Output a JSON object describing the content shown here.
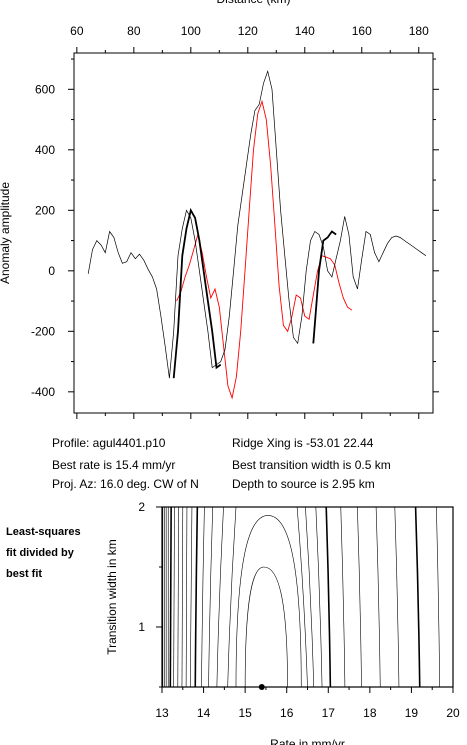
{
  "info": {
    "profile": "Profile: agul4401.p10",
    "best_rate": "Best rate is 15.4 mm/yr",
    "proj_az": "Proj. Az: 16.0 deg. CW of N",
    "ridge_xing": "Ridge Xing is -53.01 22.44",
    "best_width": "Best transition width is 0.5 km",
    "depth": "Depth to source is   2.95 km"
  },
  "side_note": [
    "Least-squares",
    "fit divided by",
    "best fit"
  ],
  "colors": {
    "observed": "#000000",
    "model": "#ff0000",
    "axes": "#000000"
  },
  "chart_data": [
    {
      "type": "line",
      "xlabel": "Distance (km)",
      "ylabel": "Anomaly amplitude",
      "xlim": [
        59,
        185
      ],
      "ylim": [
        -470,
        720
      ],
      "x_ticks": [
        60,
        80,
        100,
        120,
        140,
        160,
        180
      ],
      "y_ticks": [
        -400,
        -200,
        0,
        200,
        400,
        600
      ],
      "series": [
        {
          "role": "observed-thin",
          "x": [
            64,
            65.5,
            67,
            68.5,
            70,
            71.5,
            73,
            74.5,
            76,
            77.5,
            79,
            80.5,
            82,
            83.5,
            85,
            86.5,
            88,
            89.5,
            91,
            92.5,
            94,
            95.5,
            97,
            98.5,
            100,
            101.5,
            103,
            104.5,
            106,
            107.5,
            109,
            110.5,
            112,
            113.5,
            115,
            116.5,
            118,
            119.5,
            121,
            122.5,
            124,
            125.5,
            127,
            128.5,
            130,
            131.5,
            133,
            134.5,
            136,
            137.5,
            139,
            140.5,
            142,
            143.5,
            145,
            146.5,
            148,
            149.5,
            151,
            152.5,
            154,
            155.5,
            157,
            158.5,
            160,
            161.5,
            163,
            164.5,
            166,
            167.5,
            169,
            170.5,
            172,
            173.5,
            175,
            176.5,
            178,
            179.5,
            181,
            182.5
          ],
          "values": [
            -10,
            70,
            100,
            85,
            60,
            130,
            110,
            60,
            25,
            30,
            60,
            40,
            55,
            35,
            5,
            -20,
            -60,
            -150,
            -250,
            -355,
            -200,
            50,
            140,
            200,
            175,
            100,
            0,
            -100,
            -200,
            -320,
            -310,
            -300,
            -260,
            -150,
            0,
            150,
            250,
            350,
            450,
            530,
            550,
            620,
            660,
            600,
            400,
            200,
            50,
            -100,
            -220,
            -240,
            -150,
            0,
            100,
            130,
            120,
            80,
            0,
            -20,
            40,
            100,
            180,
            120,
            -20,
            -60,
            40,
            130,
            120,
            60,
            30,
            60,
            90,
            110,
            115,
            110,
            100,
            90,
            80,
            70,
            60,
            50
          ],
          "note": "thin line drawn only where the bold line is absent"
        },
        {
          "role": "observed-bold",
          "segments": [
            {
              "x": [
                94,
                95.5,
                97,
                98.5,
                100,
                101.5,
                103,
                104.5,
                106,
                107.5,
                109,
                110.5
              ],
              "values": [
                -355,
                -200,
                50,
                140,
                200,
                175,
                100,
                0,
                -100,
                -200,
                -320,
                -310
              ]
            },
            {
              "x": [
                143,
                144,
                145,
                146.5,
                148,
                149.5,
                151
              ],
              "values": [
                -240,
                -120,
                0,
                100,
                110,
                130,
                120
              ]
            }
          ]
        },
        {
          "role": "model",
          "x": [
            95,
            96.5,
            98,
            99.5,
            101,
            102.5,
            104,
            105.5,
            107,
            108.5,
            110,
            111.5,
            113,
            114.5,
            116,
            117.5,
            119,
            120.5,
            122,
            123.5,
            125,
            126.5,
            128,
            129.5,
            131,
            132.5,
            134,
            135.5,
            137,
            138.5,
            140,
            141.5,
            143,
            144.5,
            146,
            147.5,
            149,
            150.5,
            152,
            153.5,
            155,
            156.5
          ],
          "values": [
            -100,
            -70,
            -20,
            20,
            70,
            120,
            60,
            -20,
            -90,
            -60,
            -120,
            -250,
            -380,
            -420,
            -350,
            -200,
            0,
            200,
            400,
            520,
            560,
            500,
            350,
            150,
            -50,
            -180,
            -200,
            -150,
            -80,
            -90,
            -150,
            -160,
            -80,
            0,
            50,
            45,
            40,
            20,
            -40,
            -90,
            -120,
            -130
          ]
        }
      ]
    },
    {
      "type": "contour",
      "xlabel": "Rate in mm/yr",
      "ylabel": "Transition width in km",
      "xlim": [
        13,
        20
      ],
      "ylim": [
        0.5,
        2
      ],
      "x_ticks": [
        13,
        14,
        15,
        16,
        17,
        18,
        19,
        20
      ],
      "y_ticks": [
        1,
        2
      ],
      "best_fit": {
        "rate": 15.4,
        "width": 0.5
      },
      "contours": [
        {
          "style": "thin",
          "x": [
            13.02,
            13.02
          ]
        },
        {
          "style": "thin",
          "x": [
            13.06,
            13.06
          ]
        },
        {
          "style": "thin",
          "x": [
            13.1,
            13.1
          ]
        },
        {
          "style": "thin",
          "x": [
            13.15,
            13.15
          ]
        },
        {
          "style": "bold",
          "x": [
            13.22,
            13.2
          ]
        },
        {
          "style": "thin",
          "x": [
            13.3,
            13.28
          ]
        },
        {
          "style": "thin",
          "x": [
            13.4,
            13.38
          ]
        },
        {
          "style": "thin",
          "x": [
            13.5,
            13.48
          ]
        },
        {
          "style": "thin",
          "x": [
            13.6,
            13.58
          ]
        },
        {
          "style": "thin",
          "x": [
            13.72,
            13.68
          ]
        },
        {
          "style": "bold",
          "x": [
            13.85,
            13.8
          ]
        },
        {
          "style": "thin",
          "x": [
            14.02,
            13.95
          ]
        },
        {
          "style": "thin",
          "x": [
            14.22,
            14.12
          ]
        },
        {
          "style": "thin",
          "x": [
            14.48,
            14.32
          ]
        },
        {
          "style": "thin",
          "x": [
            14.78,
            14.58
          ]
        },
        {
          "style": "dome",
          "peak_x": 15.55,
          "peak_y": 1.93,
          "left_base_x": 14.78,
          "right_base_x": 16.35
        },
        {
          "style": "dome",
          "peak_x": 15.45,
          "peak_y": 1.5,
          "left_base_x": 15.0,
          "right_base_x": 16.02
        },
        {
          "style": "thin",
          "x": [
            16.25,
            16.5
          ]
        },
        {
          "style": "thin",
          "x": [
            16.45,
            16.65
          ]
        },
        {
          "style": "thin",
          "x": [
            16.7,
            16.85
          ]
        },
        {
          "style": "bold",
          "x": [
            16.95,
            17.05
          ]
        },
        {
          "style": "thin",
          "x": [
            17.3,
            17.4
          ]
        },
        {
          "style": "thin",
          "x": [
            17.7,
            17.8
          ]
        },
        {
          "style": "thin",
          "x": [
            18.15,
            18.25
          ]
        },
        {
          "style": "thin",
          "x": [
            18.6,
            18.7
          ]
        },
        {
          "style": "bold",
          "x": [
            19.1,
            19.2
          ]
        },
        {
          "style": "thin",
          "x": [
            19.6,
            19.68
          ]
        }
      ]
    }
  ]
}
